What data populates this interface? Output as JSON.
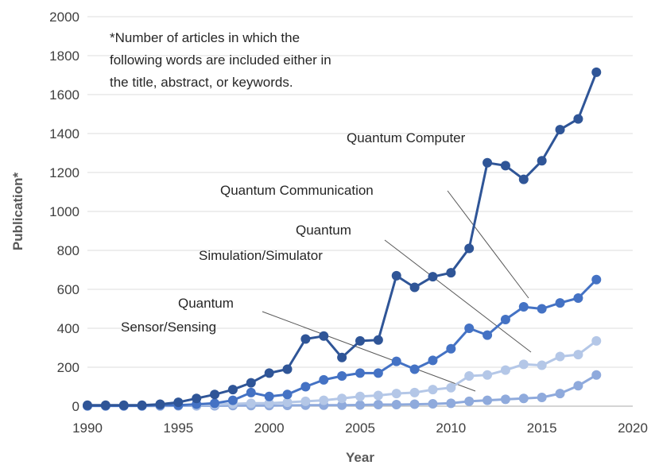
{
  "chart_data": {
    "type": "line",
    "title": "",
    "xlabel": "Year",
    "ylabel": "Publication*",
    "xlim": [
      1990,
      2020
    ],
    "ylim": [
      0,
      2000
    ],
    "x_ticks": [
      1990,
      1995,
      2000,
      2005,
      2010,
      2015,
      2020
    ],
    "y_ticks": [
      0,
      200,
      400,
      600,
      800,
      1000,
      1200,
      1400,
      1600,
      1800,
      2000
    ],
    "grid": "horizontal",
    "note_lines": [
      "*Number of articles in which the",
      "following words are included either in",
      "the title, abstract, or keywords."
    ],
    "x": [
      1990,
      1991,
      1992,
      1993,
      1994,
      1995,
      1996,
      1997,
      1998,
      1999,
      2000,
      2001,
      2002,
      2003,
      2004,
      2005,
      2006,
      2007,
      2008,
      2009,
      2010,
      2011,
      2012,
      2013,
      2014,
      2015,
      2016,
      2017,
      2018
    ],
    "series": [
      {
        "name": "Quantum Computer",
        "label_lines": [
          "Quantum  Computer"
        ],
        "color": "#2f5597",
        "values": [
          5,
          5,
          5,
          5,
          10,
          20,
          40,
          60,
          85,
          120,
          170,
          190,
          345,
          360,
          250,
          335,
          340,
          670,
          610,
          665,
          685,
          810,
          1250,
          1235,
          1165,
          1260,
          1420,
          1475,
          1715
        ]
      },
      {
        "name": "Quantum Communication",
        "label_lines": [
          "Quantum  Communication"
        ],
        "color": "#4472c4",
        "values": [
          2,
          2,
          2,
          2,
          5,
          5,
          10,
          15,
          30,
          70,
          50,
          60,
          100,
          135,
          155,
          170,
          170,
          230,
          190,
          235,
          295,
          400,
          365,
          445,
          510,
          500,
          530,
          555,
          650
        ]
      },
      {
        "name": "Quantum Simulation/Simulator",
        "label_lines": [
          "Quantum",
          "Simulation/Simulator"
        ],
        "color": "#b4c7e7",
        "values": [
          2,
          2,
          2,
          2,
          3,
          5,
          5,
          8,
          12,
          15,
          15,
          20,
          25,
          30,
          40,
          50,
          55,
          65,
          70,
          85,
          95,
          155,
          160,
          185,
          215,
          210,
          255,
          265,
          335
        ]
      },
      {
        "name": "Quantum Sensor/Sensing",
        "label_lines": [
          "Quantum",
          "Sensor/Sensing"
        ],
        "color": "#8faadc",
        "values": [
          1,
          1,
          1,
          1,
          1,
          2,
          2,
          2,
          3,
          3,
          3,
          4,
          5,
          5,
          5,
          6,
          8,
          8,
          10,
          12,
          15,
          25,
          30,
          35,
          40,
          45,
          65,
          105,
          160
        ]
      }
    ]
  }
}
